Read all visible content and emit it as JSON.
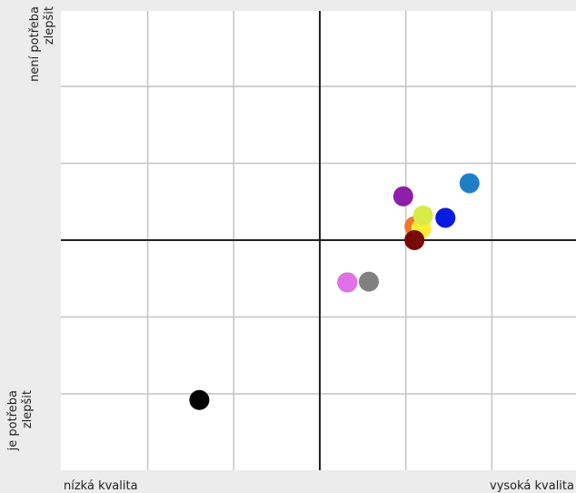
{
  "chart_data": {
    "type": "scatter",
    "title": "",
    "xlabel_low": "nízká kvalita",
    "xlabel_high": "vysoká kvalita",
    "ylabel_high": [
      "není potřeba",
      "zlepšit"
    ],
    "ylabel_low": [
      "je potřeba",
      "zlepšit"
    ],
    "xlim": [
      -3,
      3
    ],
    "ylim": [
      -3,
      3
    ],
    "grid": true,
    "points": [
      {
        "x": -1.4,
        "y": -2.08,
        "color": "#000000"
      },
      {
        "x": 0.32,
        "y": -0.55,
        "color": "#33bb44"
      },
      {
        "x": 0.32,
        "y": -0.55,
        "color": "#e070e8"
      },
      {
        "x": 0.57,
        "y": -0.54,
        "color": "#808080"
      },
      {
        "x": 0.97,
        "y": 0.57,
        "color": "#8e1fa8"
      },
      {
        "x": 1.1,
        "y": 0.18,
        "color": "#f07a2a"
      },
      {
        "x": 1.18,
        "y": 0.15,
        "color": "#ffee33"
      },
      {
        "x": 1.2,
        "y": 0.32,
        "color": "#d8ec48"
      },
      {
        "x": 1.46,
        "y": 0.29,
        "color": "#0a1ae0"
      },
      {
        "x": 1.1,
        "y": 0.0,
        "color": "#7a0a0a"
      },
      {
        "x": 1.74,
        "y": 0.74,
        "color": "#1e7ec8"
      }
    ]
  }
}
